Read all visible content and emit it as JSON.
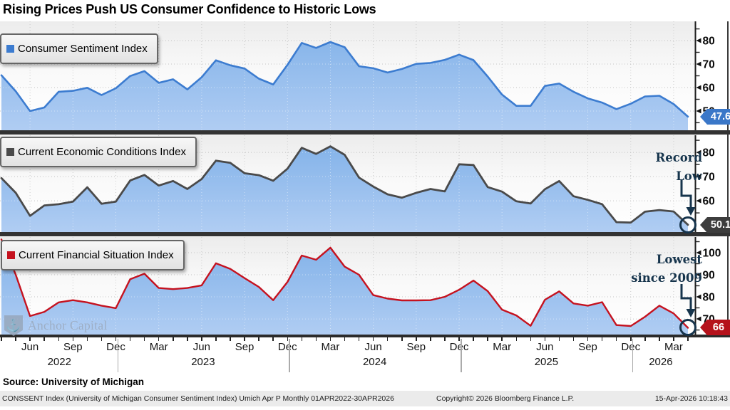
{
  "title": "Rising Prices Push US Consumer Confidence to Historic Lows",
  "watermark": {
    "text": "Anchor Capital",
    "icon_glyph": "⚓"
  },
  "source_line": "Source: University of Michigan",
  "footer": {
    "description": "CONSSENT Index (University of Michigan Consumer Sentiment Index) Umich Apr P Monthly 01APR2022-30APR2026",
    "copyright": "Copyright© 2026 Bloomberg Finance L.P.",
    "timestamp": "15-Apr-2026 10:18:43"
  },
  "colors": {
    "sentiment_blue": "#3c7cd0",
    "conditions_gray": "#4a4a4a",
    "financial_red": "#c5121f",
    "badge_blue": "#3a77c8",
    "badge_gray": "#3d3d3d",
    "badge_red": "#b5121b",
    "annotation_navy": "#16344c",
    "area_fill_top": "#7fb0e8",
    "area_fill_bottom": "#b0cdf3"
  },
  "x_axis": {
    "months": [
      "2022-04",
      "2022-05",
      "2022-06",
      "2022-07",
      "2022-08",
      "2022-09",
      "2022-10",
      "2022-11",
      "2022-12",
      "2023-01",
      "2023-02",
      "2023-03",
      "2023-04",
      "2023-05",
      "2023-06",
      "2023-07",
      "2023-08",
      "2023-09",
      "2023-10",
      "2023-11",
      "2023-12",
      "2024-01",
      "2024-02",
      "2024-03",
      "2024-04",
      "2024-05",
      "2024-06",
      "2024-07",
      "2024-08",
      "2024-09",
      "2024-10",
      "2024-11",
      "2024-12",
      "2025-01",
      "2025-02",
      "2025-03",
      "2025-04",
      "2025-05",
      "2025-06",
      "2025-07",
      "2025-08",
      "2025-09",
      "2025-10",
      "2025-11",
      "2025-12",
      "2026-01",
      "2026-02",
      "2026-03",
      "2026-04"
    ],
    "quarter_tick_labels": [
      "Jun",
      "Sep",
      "Dec",
      "Mar",
      "Jun",
      "Sep",
      "Dec",
      "Mar",
      "Jun",
      "Sep",
      "Dec",
      "Mar",
      "Jun",
      "Sep",
      "Dec",
      "Mar"
    ],
    "years": [
      "2022",
      "2023",
      "2024",
      "2025",
      "2026"
    ]
  },
  "chart_data": [
    {
      "type": "area",
      "series_name": "Consumer Sentiment Index",
      "line_color": "#3c7cd0",
      "badge_color": "#3a77c8",
      "last_value": 47.6,
      "last_value_label": "47.6",
      "y_ticks": [
        80,
        70,
        60,
        50
      ],
      "ylim": [
        41.8,
        88.2
      ],
      "values": [
        65.2,
        58.4,
        50.0,
        51.5,
        58.2,
        58.6,
        59.9,
        56.8,
        59.7,
        64.9,
        67.0,
        62.0,
        63.5,
        59.2,
        64.4,
        71.6,
        69.5,
        68.1,
        63.8,
        61.3,
        69.7,
        79.0,
        76.9,
        79.4,
        77.2,
        69.1,
        68.2,
        66.4,
        67.9,
        70.1,
        70.5,
        71.8,
        74.0,
        71.7,
        64.7,
        57.0,
        52.2,
        52.2,
        60.7,
        61.7,
        58.2,
        55.4,
        53.6,
        50.8,
        53.1,
        56.2,
        56.5,
        53.0,
        47.6
      ],
      "annotation": null
    },
    {
      "type": "area",
      "series_name": "Current Economic Conditions Index",
      "line_color": "#4a4a4a",
      "badge_color": "#3d3d3d",
      "last_value": 50.1,
      "last_value_label": "50.1",
      "y_ticks": [
        80,
        70,
        60
      ],
      "ylim": [
        47.1,
        87.1
      ],
      "values": [
        69.4,
        63.3,
        53.8,
        58.1,
        58.6,
        59.7,
        65.6,
        58.8,
        59.7,
        68.4,
        70.7,
        66.3,
        68.2,
        64.9,
        69.0,
        76.6,
        75.7,
        71.4,
        70.6,
        68.3,
        73.3,
        81.9,
        79.4,
        82.5,
        79.0,
        69.6,
        65.9,
        62.7,
        61.3,
        63.3,
        64.9,
        63.9,
        75.1,
        74.8,
        65.7,
        63.8,
        59.8,
        58.9,
        64.8,
        68.2,
        61.9,
        60.4,
        58.6,
        51.2,
        51.0,
        55.5,
        56.2,
        55.6,
        50.1
      ],
      "annotation": {
        "line1": "Record",
        "line2": "Low",
        "points_to": "last-value"
      }
    },
    {
      "type": "area",
      "series_name": "Current Financial Situation Index",
      "line_color": "#c5121f",
      "badge_color": "#b5121b",
      "last_value": 66,
      "last_value_label": "66",
      "y_ticks": [
        100,
        90,
        80,
        70
      ],
      "ylim": [
        62.6,
        107.1
      ],
      "values": [
        106.0,
        90.0,
        71.3,
        73.2,
        77.5,
        78.5,
        77.5,
        76.0,
        74.9,
        88.0,
        90.5,
        84.0,
        83.5,
        84.0,
        85.2,
        95.2,
        92.7,
        88.5,
        84.5,
        78.5,
        86.8,
        98.7,
        96.8,
        102.3,
        93.7,
        90.0,
        80.8,
        79.2,
        78.4,
        78.4,
        78.5,
        80.0,
        83.2,
        87.4,
        82.6,
        74.2,
        71.6,
        66.9,
        78.7,
        82.5,
        77.0,
        76.0,
        77.6,
        67.2,
        66.8,
        71.0,
        76.0,
        72.5,
        66.0
      ],
      "annotation": {
        "line1": "Lowest",
        "line2": "since 2009",
        "points_to": "last-value"
      }
    }
  ]
}
